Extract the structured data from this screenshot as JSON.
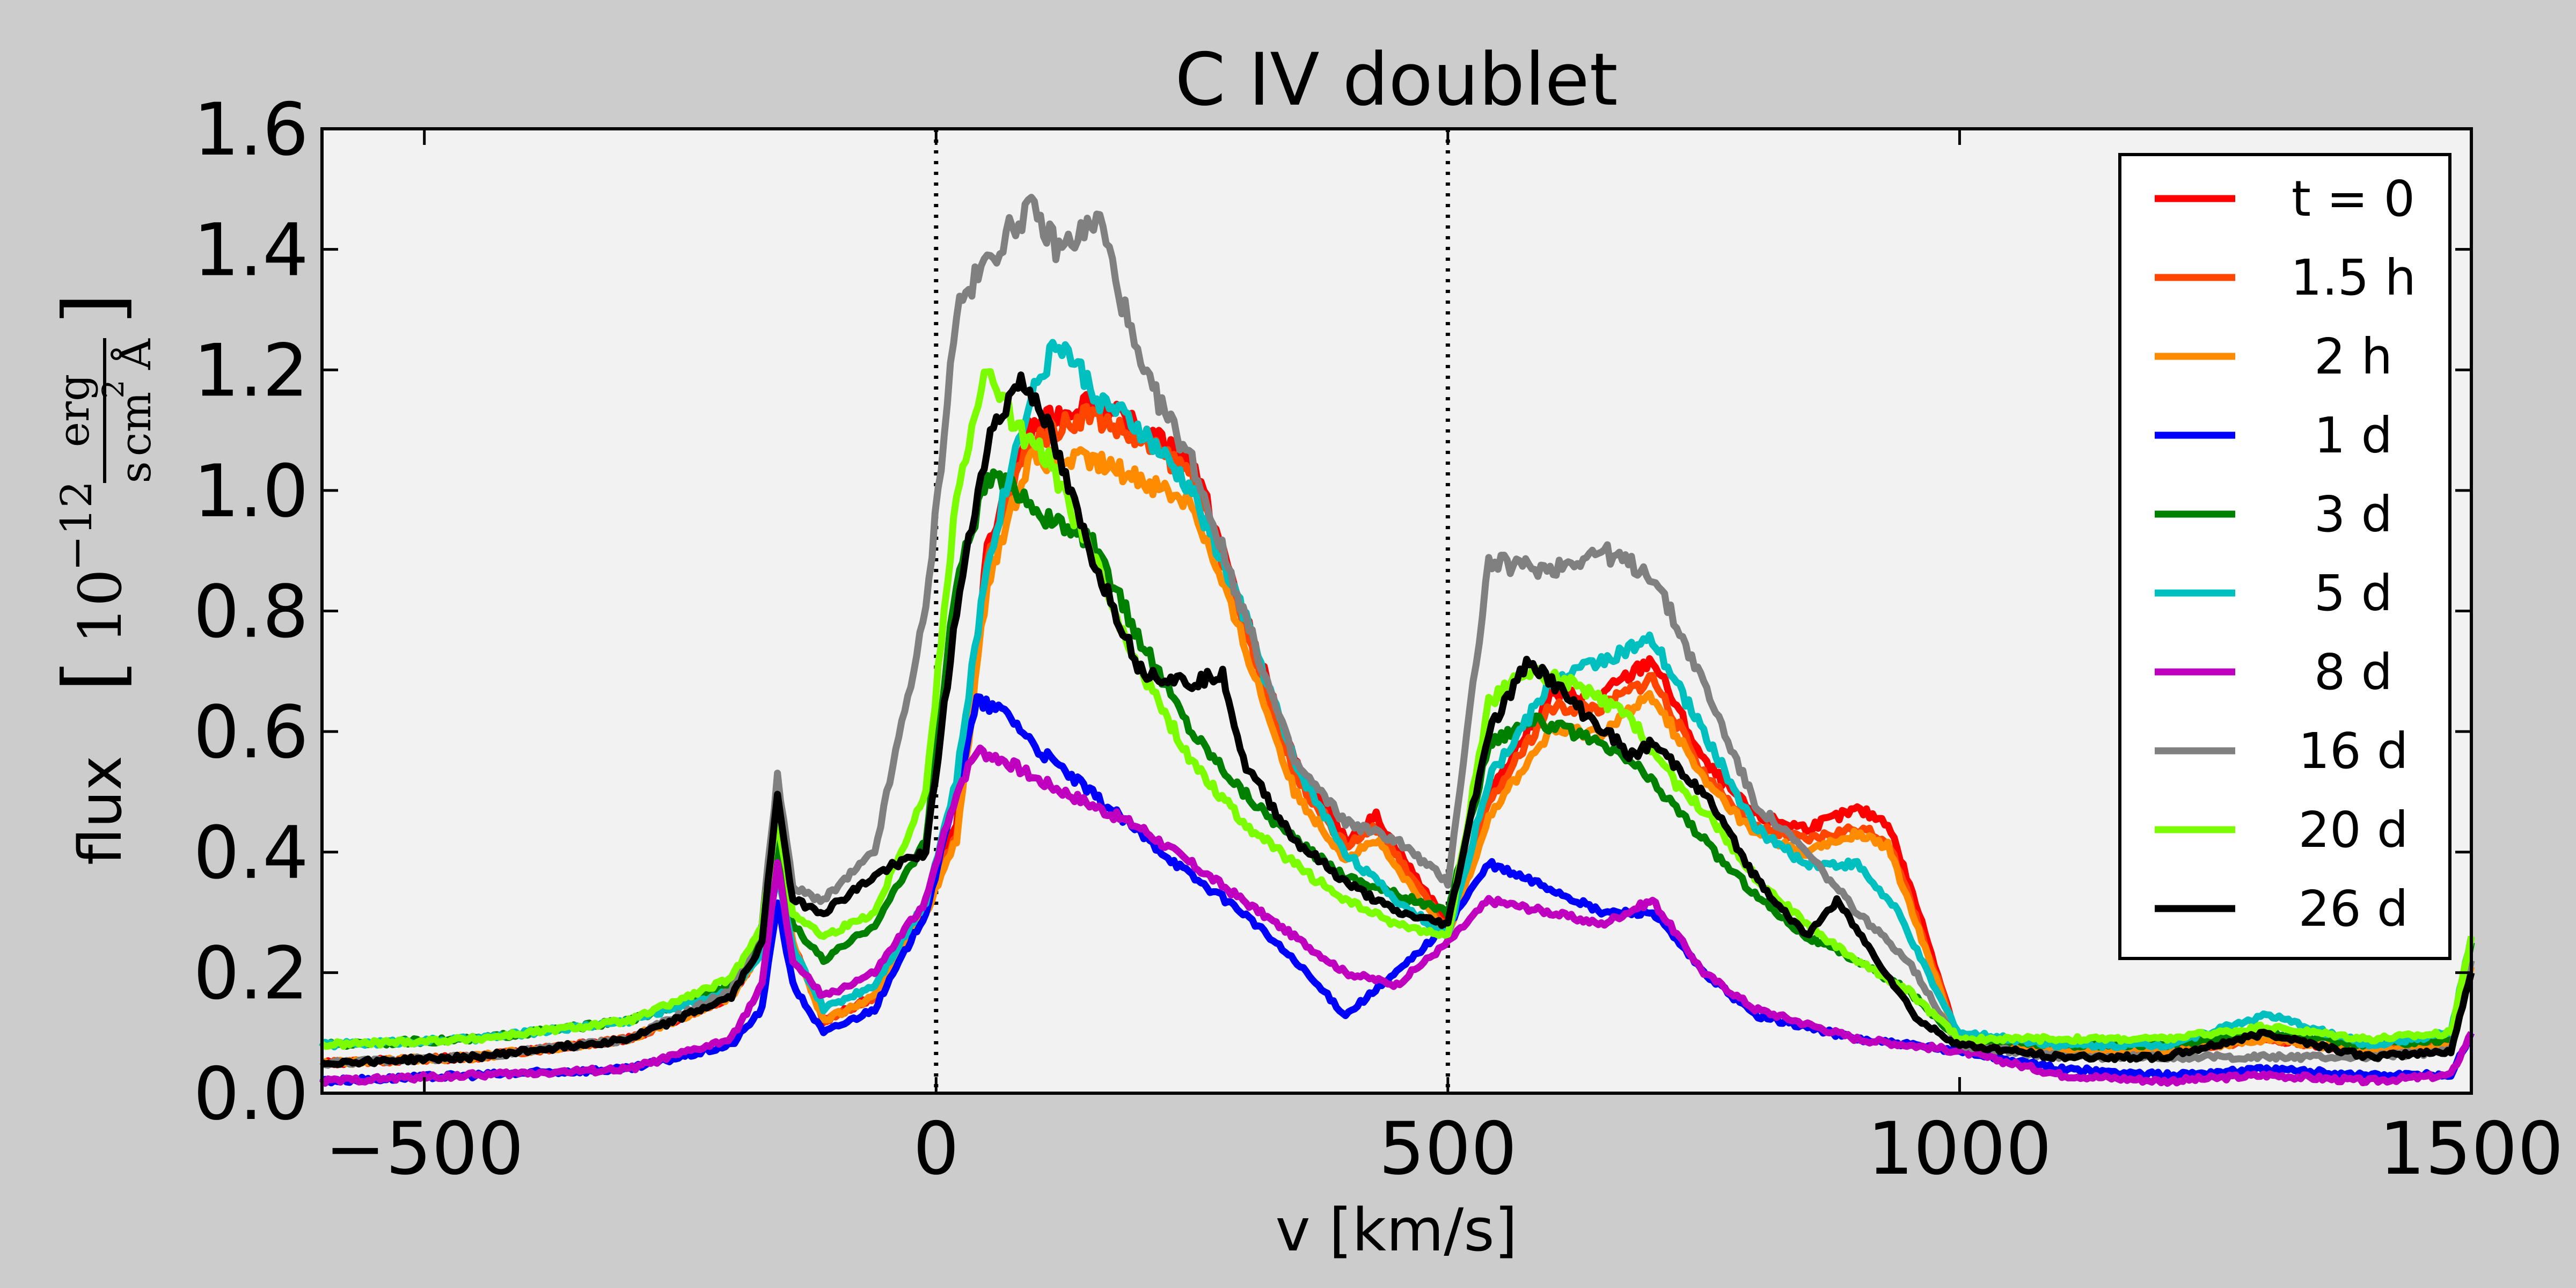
{
  "chart_data": {
    "type": "line",
    "title": "C IV doublet",
    "xlabel": "v [km/s]",
    "ylabel": "flux",
    "ylabel_unit": {
      "factor": "10",
      "exponent": "−12",
      "numerator": "erg",
      "denominator_s": "s",
      "denominator_cm": "cm",
      "cm_exp": "2",
      "denominator_A": "Å"
    },
    "xlim": [
      -600,
      1500
    ],
    "ylim": [
      0.0,
      1.6
    ],
    "xticks": [
      -500,
      0,
      500,
      1000,
      1500
    ],
    "xtick_labels": [
      "−500",
      "0",
      "500",
      "1000",
      "1500"
    ],
    "yticks": [
      0.0,
      0.2,
      0.4,
      0.6,
      0.8,
      1.0,
      1.2,
      1.4,
      1.6
    ],
    "ytick_labels": [
      "0.0",
      "0.2",
      "0.4",
      "0.6",
      "0.8",
      "1.0",
      "1.2",
      "1.4",
      "1.6"
    ],
    "vlines": [
      0,
      500
    ],
    "grid": false,
    "legend_position": "top-right",
    "series": [
      {
        "name": "t = 0",
        "color": "#ff0000",
        "x": [
          -600,
          -450,
          -300,
          -200,
          -170,
          -155,
          -140,
          -110,
          -60,
          -10,
          20,
          50,
          90,
          150,
          200,
          250,
          300,
          350,
          400,
          430,
          460,
          500,
          540,
          600,
          650,
          700,
          750,
          800,
          850,
          900,
          930,
          960,
          1000,
          1100,
          1200,
          1300,
          1400,
          1480,
          1500
        ],
        "y": [
          0.05,
          0.06,
          0.09,
          0.16,
          0.24,
          0.43,
          0.25,
          0.12,
          0.16,
          0.32,
          0.45,
          0.9,
          1.1,
          1.15,
          1.1,
          1.05,
          0.8,
          0.55,
          0.42,
          0.46,
          0.38,
          0.28,
          0.5,
          0.66,
          0.66,
          0.72,
          0.55,
          0.46,
          0.44,
          0.47,
          0.45,
          0.3,
          0.08,
          0.07,
          0.07,
          0.09,
          0.07,
          0.08,
          0.22
        ]
      },
      {
        "name": "1.5 h",
        "color": "#ff4500",
        "x": [
          -600,
          -450,
          -300,
          -200,
          -170,
          -155,
          -140,
          -110,
          -60,
          -10,
          20,
          50,
          90,
          150,
          200,
          250,
          300,
          350,
          400,
          430,
          460,
          500,
          540,
          600,
          650,
          700,
          750,
          800,
          850,
          900,
          930,
          960,
          1000,
          1100,
          1200,
          1300,
          1400,
          1480,
          1500
        ],
        "y": [
          0.05,
          0.06,
          0.09,
          0.16,
          0.24,
          0.42,
          0.25,
          0.12,
          0.16,
          0.31,
          0.43,
          0.88,
          1.08,
          1.13,
          1.08,
          1.03,
          0.78,
          0.53,
          0.41,
          0.44,
          0.37,
          0.27,
          0.48,
          0.64,
          0.64,
          0.69,
          0.53,
          0.44,
          0.42,
          0.44,
          0.42,
          0.28,
          0.08,
          0.07,
          0.07,
          0.09,
          0.07,
          0.08,
          0.21
        ]
      },
      {
        "name": "2 h",
        "color": "#ff8c00",
        "x": [
          -600,
          -450,
          -300,
          -200,
          -170,
          -155,
          -140,
          -110,
          -60,
          -10,
          20,
          50,
          90,
          150,
          200,
          250,
          300,
          350,
          400,
          430,
          460,
          500,
          540,
          600,
          650,
          700,
          750,
          800,
          850,
          900,
          930,
          960,
          1000,
          1100,
          1200,
          1300,
          1400,
          1480,
          1500
        ],
        "y": [
          0.05,
          0.06,
          0.09,
          0.16,
          0.24,
          0.42,
          0.25,
          0.12,
          0.16,
          0.3,
          0.42,
          0.85,
          1.05,
          1.05,
          1.02,
          0.98,
          0.75,
          0.5,
          0.39,
          0.42,
          0.35,
          0.26,
          0.46,
          0.6,
          0.6,
          0.66,
          0.52,
          0.43,
          0.4,
          0.43,
          0.41,
          0.27,
          0.08,
          0.07,
          0.07,
          0.09,
          0.07,
          0.08,
          0.21
        ]
      },
      {
        "name": "1 d",
        "color": "#0000ff",
        "x": [
          -600,
          -450,
          -300,
          -200,
          -170,
          -155,
          -140,
          -110,
          -60,
          -10,
          20,
          40,
          70,
          100,
          150,
          200,
          250,
          300,
          350,
          400,
          450,
          500,
          540,
          600,
          650,
          700,
          750,
          800,
          900,
          1000,
          1100,
          1200,
          1300,
          1400,
          1480,
          1500
        ],
        "y": [
          0.02,
          0.03,
          0.04,
          0.08,
          0.14,
          0.32,
          0.18,
          0.1,
          0.14,
          0.3,
          0.5,
          0.65,
          0.63,
          0.57,
          0.5,
          0.43,
          0.36,
          0.3,
          0.22,
          0.13,
          0.2,
          0.28,
          0.38,
          0.34,
          0.3,
          0.3,
          0.2,
          0.13,
          0.09,
          0.07,
          0.04,
          0.03,
          0.04,
          0.03,
          0.03,
          0.1
        ]
      },
      {
        "name": "3 d",
        "color": "#008000",
        "x": [
          -600,
          -450,
          -300,
          -200,
          -170,
          -155,
          -140,
          -110,
          -60,
          -10,
          20,
          50,
          80,
          110,
          150,
          200,
          250,
          300,
          350,
          400,
          450,
          500,
          540,
          580,
          620,
          680,
          720,
          760,
          800,
          850,
          900,
          950,
          1000,
          1100,
          1200,
          1300,
          1400,
          1480,
          1500
        ],
        "y": [
          0.08,
          0.09,
          0.12,
          0.18,
          0.26,
          0.42,
          0.28,
          0.22,
          0.28,
          0.42,
          0.85,
          1.02,
          1.0,
          0.95,
          0.92,
          0.75,
          0.6,
          0.5,
          0.42,
          0.36,
          0.33,
          0.3,
          0.58,
          0.62,
          0.6,
          0.55,
          0.48,
          0.4,
          0.33,
          0.26,
          0.22,
          0.17,
          0.09,
          0.08,
          0.08,
          0.1,
          0.08,
          0.09,
          0.25
        ]
      },
      {
        "name": "5 d",
        "color": "#00bfbf",
        "x": [
          -600,
          -450,
          -300,
          -200,
          -170,
          -155,
          -140,
          -110,
          -60,
          -10,
          20,
          50,
          90,
          120,
          160,
          200,
          250,
          300,
          350,
          400,
          450,
          500,
          540,
          600,
          650,
          700,
          750,
          800,
          850,
          900,
          940,
          980,
          1000,
          1100,
          1200,
          1300,
          1400,
          1480,
          1500
        ],
        "y": [
          0.08,
          0.09,
          0.12,
          0.17,
          0.23,
          0.36,
          0.24,
          0.14,
          0.18,
          0.32,
          0.52,
          0.88,
          1.15,
          1.25,
          1.15,
          1.1,
          1.0,
          0.8,
          0.55,
          0.4,
          0.32,
          0.26,
          0.52,
          0.68,
          0.72,
          0.75,
          0.6,
          0.44,
          0.38,
          0.38,
          0.3,
          0.16,
          0.1,
          0.08,
          0.08,
          0.13,
          0.08,
          0.1,
          0.26
        ]
      },
      {
        "name": "8 d",
        "color": "#bf00bf",
        "x": [
          -600,
          -450,
          -300,
          -200,
          -170,
          -155,
          -140,
          -110,
          -60,
          -10,
          20,
          40,
          70,
          100,
          150,
          200,
          250,
          300,
          350,
          400,
          450,
          500,
          540,
          600,
          650,
          700,
          750,
          800,
          900,
          1000,
          1100,
          1200,
          1300,
          1400,
          1480,
          1500
        ],
        "y": [
          0.02,
          0.03,
          0.04,
          0.09,
          0.18,
          0.38,
          0.22,
          0.16,
          0.2,
          0.32,
          0.5,
          0.57,
          0.55,
          0.52,
          0.48,
          0.44,
          0.38,
          0.32,
          0.26,
          0.2,
          0.18,
          0.25,
          0.32,
          0.3,
          0.28,
          0.32,
          0.2,
          0.14,
          0.09,
          0.07,
          0.03,
          0.02,
          0.03,
          0.02,
          0.03,
          0.1
        ]
      },
      {
        "name": "16 d",
        "color": "#808080",
        "x": [
          -600,
          -450,
          -300,
          -200,
          -170,
          -155,
          -140,
          -110,
          -60,
          -10,
          20,
          50,
          90,
          120,
          160,
          200,
          250,
          300,
          350,
          400,
          450,
          500,
          540,
          600,
          650,
          700,
          750,
          800,
          850,
          900,
          950,
          1000,
          1100,
          1200,
          1300,
          1400,
          1480,
          1500
        ],
        "y": [
          0.05,
          0.06,
          0.09,
          0.17,
          0.28,
          0.53,
          0.34,
          0.32,
          0.4,
          0.8,
          1.3,
          1.38,
          1.47,
          1.4,
          1.45,
          1.2,
          1.05,
          0.8,
          0.55,
          0.45,
          0.42,
          0.35,
          0.88,
          0.87,
          0.9,
          0.86,
          0.68,
          0.48,
          0.4,
          0.3,
          0.22,
          0.08,
          0.06,
          0.06,
          0.06,
          0.06,
          0.07,
          0.22
        ]
      },
      {
        "name": "20 d",
        "color": "#7cfc00",
        "x": [
          -600,
          -450,
          -300,
          -200,
          -170,
          -155,
          -140,
          -110,
          -60,
          -10,
          20,
          50,
          80,
          110,
          150,
          200,
          250,
          300,
          350,
          400,
          450,
          500,
          540,
          580,
          620,
          680,
          720,
          760,
          800,
          850,
          900,
          950,
          1000,
          1100,
          1200,
          1300,
          1400,
          1480,
          1500
        ],
        "y": [
          0.08,
          0.09,
          0.12,
          0.19,
          0.28,
          0.46,
          0.3,
          0.26,
          0.3,
          0.5,
          1.0,
          1.2,
          1.1,
          1.05,
          0.9,
          0.7,
          0.55,
          0.45,
          0.38,
          0.32,
          0.28,
          0.26,
          0.65,
          0.7,
          0.68,
          0.62,
          0.52,
          0.45,
          0.36,
          0.28,
          0.22,
          0.17,
          0.09,
          0.09,
          0.09,
          0.11,
          0.09,
          0.1,
          0.26
        ]
      },
      {
        "name": "26 d",
        "color": "#000000",
        "x": [
          -600,
          -450,
          -300,
          -200,
          -170,
          -155,
          -140,
          -110,
          -60,
          -40,
          -10,
          20,
          50,
          80,
          100,
          150,
          200,
          250,
          280,
          300,
          350,
          400,
          450,
          500,
          540,
          580,
          620,
          680,
          700,
          750,
          800,
          850,
          880,
          920,
          960,
          1000,
          1100,
          1200,
          1300,
          1400,
          1480,
          1500
        ],
        "y": [
          0.05,
          0.06,
          0.09,
          0.16,
          0.25,
          0.5,
          0.32,
          0.3,
          0.36,
          0.38,
          0.4,
          0.8,
          1.08,
          1.18,
          1.15,
          0.9,
          0.7,
          0.68,
          0.7,
          0.55,
          0.42,
          0.35,
          0.3,
          0.28,
          0.6,
          0.72,
          0.65,
          0.56,
          0.58,
          0.5,
          0.36,
          0.26,
          0.32,
          0.22,
          0.12,
          0.08,
          0.06,
          0.06,
          0.1,
          0.06,
          0.07,
          0.2
        ]
      }
    ]
  }
}
